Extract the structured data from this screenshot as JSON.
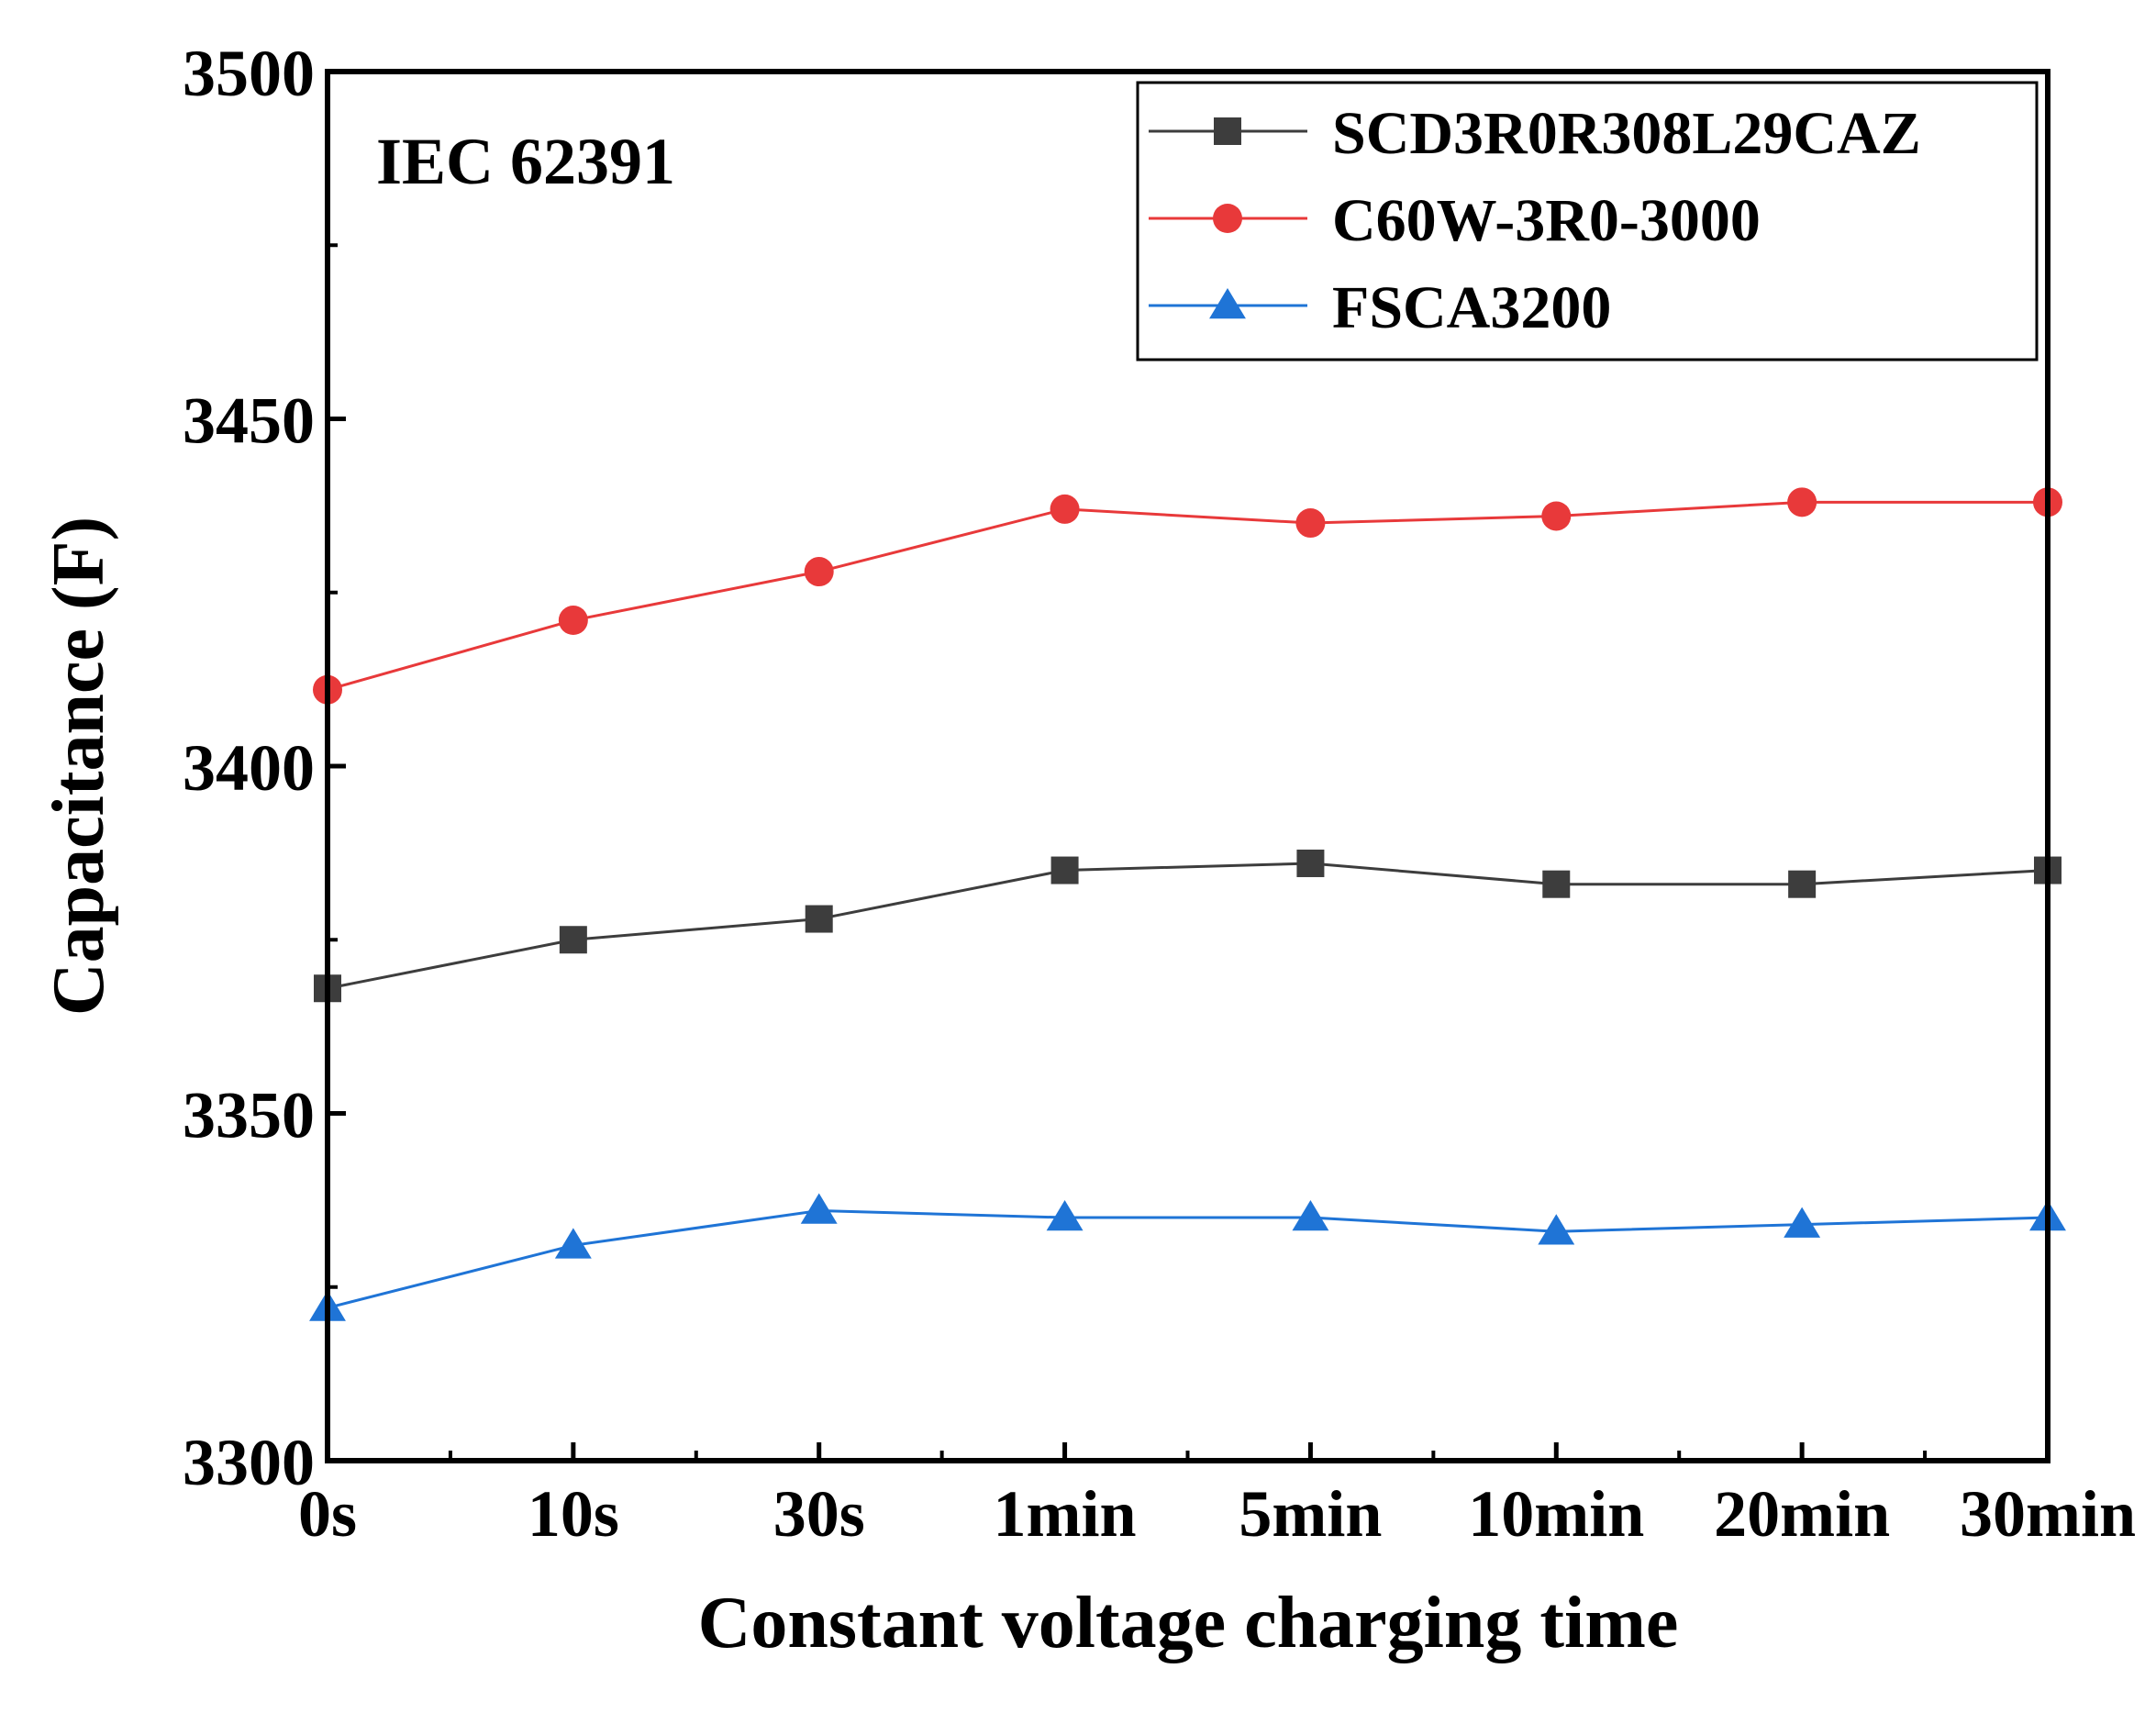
{
  "chart_data": {
    "type": "line",
    "annotation": "IEC 62391",
    "xlabel": "Constant voltage charging time",
    "ylabel": "Capacitance (F)",
    "categories": [
      "0s",
      "10s",
      "30s",
      "1min",
      "5min",
      "10min",
      "20min",
      "30min"
    ],
    "ylim": [
      3300,
      3500
    ],
    "yticks": [
      3300,
      3350,
      3400,
      3450,
      3500
    ],
    "grid": false,
    "legend_position": "top-right",
    "series": [
      {
        "name": "SCD3R0R308L29CAZ",
        "color": "#3d3d3d",
        "marker": "square",
        "values": [
          3368,
          3375,
          3378,
          3385,
          3386,
          3383,
          3383,
          3385
        ]
      },
      {
        "name": "C60W-3R0-3000",
        "color": "#e8393a",
        "marker": "circle",
        "values": [
          3411,
          3421,
          3428,
          3437,
          3435,
          3436,
          3438,
          3438
        ]
      },
      {
        "name": "FSCA3200",
        "color": "#1f74d6",
        "marker": "triangle",
        "values": [
          3322,
          3331,
          3336,
          3335,
          3335,
          3333,
          3334,
          3335
        ]
      }
    ]
  }
}
